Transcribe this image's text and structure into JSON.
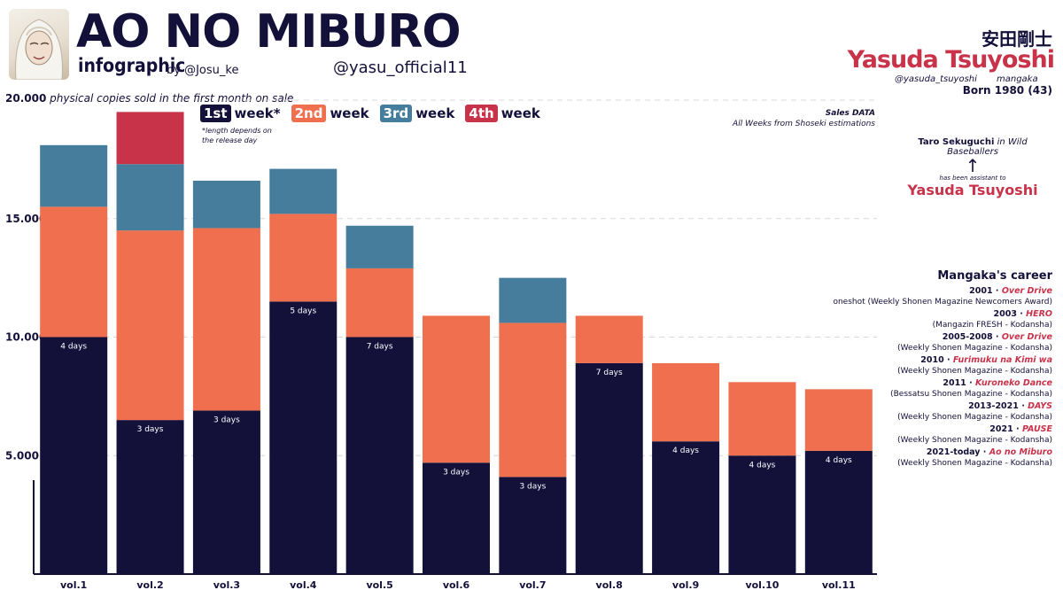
{
  "header": {
    "title": "AO NO MIBURO",
    "subtitle": "infographic",
    "byline": "by @Josu_ke",
    "handle": "@yasu_official11"
  },
  "author": {
    "name_jp": "安田剛士",
    "name": "Yasuda Tsuyoshi",
    "handle": "@yasuda_tsuyoshi",
    "role": "mangaka",
    "born": "Born 1980 (43)"
  },
  "assistant": {
    "line1_name": "Taro Sekuguchi",
    "line1_rest": "in Wild Baseballers",
    "arrow": "↑",
    "connector": "has been assistant to",
    "name": "Yasuda Tsuyoshi"
  },
  "sales_note": {
    "line1": "Sales DATA",
    "line2": "All Weeks from Shoseki estimations"
  },
  "legend": {
    "items": [
      {
        "chip": "1st",
        "label": "week*",
        "color": "#13103a"
      },
      {
        "chip": "2nd",
        "label": "week",
        "color": "#ef6f4e"
      },
      {
        "chip": "3rd",
        "label": "week",
        "color": "#467d9d"
      },
      {
        "chip": "4th",
        "label": "week",
        "color": "#c8334a"
      }
    ],
    "note_line1": "*length depends on",
    "note_line2": "the release day"
  },
  "y_title": {
    "value": "20.000",
    "text": "physical copies sold  in the first month on sale"
  },
  "chart_data": {
    "type": "bar",
    "stacked": true,
    "categories": [
      "vol.1",
      "vol.2",
      "vol.3",
      "vol.4",
      "vol.5",
      "vol.6",
      "vol.7",
      "vol.8",
      "vol.9",
      "vol.10",
      "vol.11"
    ],
    "series": [
      {
        "name": "1st week",
        "color": "#13103a",
        "values": [
          10000,
          6500,
          6900,
          11500,
          10000,
          4700,
          4100,
          8900,
          5600,
          5000,
          5200
        ]
      },
      {
        "name": "2nd week",
        "color": "#ef6f4e",
        "values": [
          5500,
          8000,
          7700,
          3700,
          2900,
          6200,
          6500,
          2000,
          3300,
          3100,
          2600
        ]
      },
      {
        "name": "3rd week",
        "color": "#467d9d",
        "values": [
          2600,
          2800,
          2000,
          1900,
          1800,
          0,
          1900,
          0,
          0,
          0,
          0
        ]
      },
      {
        "name": "4th week",
        "color": "#c8334a",
        "values": [
          0,
          2200,
          0,
          0,
          0,
          0,
          0,
          0,
          0,
          0,
          0
        ]
      }
    ],
    "day_labels": [
      "4 days",
      "3 days",
      "3 days",
      "5 days",
      "7 days",
      "3 days",
      "3 days",
      "7 days",
      "4 days",
      "4 days",
      "4 days"
    ],
    "yticks": [
      5000,
      10000,
      15000
    ],
    "ytick_labels": [
      "5.000",
      "10.000",
      "15.000"
    ],
    "ylim": [
      0,
      20000
    ],
    "grid": true
  },
  "career": {
    "title": "Mangaka's career",
    "items": [
      {
        "years": "2001",
        "work": "Over Drive",
        "detail": "oneshot (Weekly Shonen Magazine Newcomers Award)"
      },
      {
        "years": "2003",
        "work": "HERO",
        "detail": "(Mangazin FRESH - Kodansha)"
      },
      {
        "years": "2005-2008",
        "work": "Over Drive",
        "detail": "(Weekly Shonen Magazine - Kodansha)"
      },
      {
        "years": "2010",
        "work": "Furimuku na Kimi wa",
        "detail": "(Weekly Shonen Magazine - Kodansha)"
      },
      {
        "years": "2011",
        "work": "Kuroneko Dance",
        "detail": "(Bessatsu Shonen Magazine - Kodansha)"
      },
      {
        "years": "2013-2021",
        "work": "DAYS",
        "detail": "(Weekly Shonen Magazine - Kodansha)"
      },
      {
        "years": "2021",
        "work": "PAUSE",
        "detail": "(Weekly Shonen Magazine - Kodansha)"
      },
      {
        "years": "2021-today",
        "work": "Ao no Miburo",
        "detail": "(Weekly Shonen Magazine - Kodansha)"
      }
    ]
  }
}
